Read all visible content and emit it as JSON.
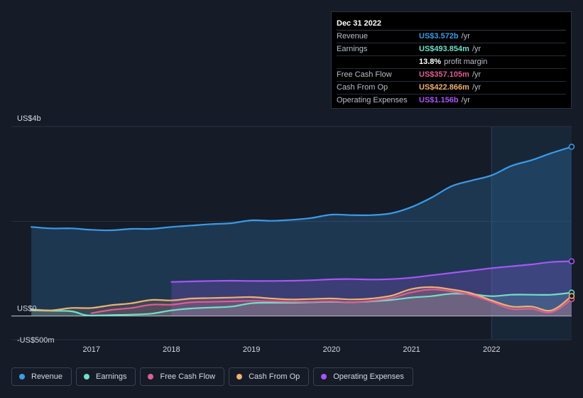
{
  "tooltip": {
    "date": "Dec 31 2022",
    "rows": [
      {
        "label": "Revenue",
        "value": "US$3.572b",
        "suffix": "/yr",
        "color": "#3b9be8"
      },
      {
        "label": "Earnings",
        "value": "US$493.854m",
        "suffix": "/yr",
        "color": "#6fe0c9"
      },
      {
        "label": "",
        "value": "13.8%",
        "suffix": "profit margin",
        "color": "#ffffff"
      },
      {
        "label": "Free Cash Flow",
        "value": "US$357.105m",
        "suffix": "/yr",
        "color": "#e05d93"
      },
      {
        "label": "Cash From Op",
        "value": "US$422.866m",
        "suffix": "/yr",
        "color": "#f0b070"
      },
      {
        "label": "Operating Expenses",
        "value": "US$1.156b",
        "suffix": "/yr",
        "color": "#a855f7"
      }
    ]
  },
  "legend": [
    {
      "label": "Revenue",
      "color": "#3b9be8"
    },
    {
      "label": "Earnings",
      "color": "#6fe0c9"
    },
    {
      "label": "Free Cash Flow",
      "color": "#e05d93"
    },
    {
      "label": "Cash From Op",
      "color": "#f0b070"
    },
    {
      "label": "Operating Expenses",
      "color": "#a855f7"
    }
  ],
  "chart_data": {
    "type": "area",
    "y_tick_labels": [
      "US$4b",
      "US$0",
      "-US$500m"
    ],
    "x_tick_labels": [
      "2017",
      "2018",
      "2019",
      "2020",
      "2021",
      "2022"
    ],
    "x_ticks": [
      2017,
      2018,
      2019,
      2020,
      2021,
      2022
    ],
    "ylim": [
      -500,
      4000
    ],
    "xlim": [
      2016.0,
      2023.0
    ],
    "highlight_start": 2022.0,
    "series": [
      {
        "name": "Revenue",
        "color": "#3b9be8",
        "points": [
          [
            2016.25,
            1880
          ],
          [
            2016.5,
            1850
          ],
          [
            2016.75,
            1850
          ],
          [
            2017.0,
            1820
          ],
          [
            2017.25,
            1810
          ],
          [
            2017.5,
            1840
          ],
          [
            2017.75,
            1840
          ],
          [
            2018.0,
            1880
          ],
          [
            2018.25,
            1910
          ],
          [
            2018.5,
            1940
          ],
          [
            2018.75,
            1960
          ],
          [
            2019.0,
            2020
          ],
          [
            2019.25,
            2010
          ],
          [
            2019.5,
            2030
          ],
          [
            2019.75,
            2070
          ],
          [
            2020.0,
            2140
          ],
          [
            2020.25,
            2130
          ],
          [
            2020.5,
            2130
          ],
          [
            2020.75,
            2170
          ],
          [
            2021.0,
            2300
          ],
          [
            2021.25,
            2500
          ],
          [
            2021.5,
            2740
          ],
          [
            2021.75,
            2860
          ],
          [
            2022.0,
            2970
          ],
          [
            2022.25,
            3170
          ],
          [
            2022.5,
            3290
          ],
          [
            2022.75,
            3440
          ],
          [
            2023.0,
            3572
          ]
        ]
      },
      {
        "name": "Operating Expenses",
        "color": "#a855f7",
        "points": [
          [
            2018.0,
            720
          ],
          [
            2018.25,
            730
          ],
          [
            2018.5,
            740
          ],
          [
            2018.75,
            745
          ],
          [
            2019.0,
            740
          ],
          [
            2019.25,
            740
          ],
          [
            2019.5,
            745
          ],
          [
            2019.75,
            755
          ],
          [
            2020.0,
            775
          ],
          [
            2020.25,
            780
          ],
          [
            2020.5,
            770
          ],
          [
            2020.75,
            780
          ],
          [
            2021.0,
            810
          ],
          [
            2021.25,
            860
          ],
          [
            2021.5,
            910
          ],
          [
            2021.75,
            960
          ],
          [
            2022.0,
            1010
          ],
          [
            2022.25,
            1050
          ],
          [
            2022.5,
            1090
          ],
          [
            2022.75,
            1140
          ],
          [
            2023.0,
            1156
          ]
        ]
      },
      {
        "name": "Earnings",
        "color": "#6fe0c9",
        "points": [
          [
            2016.25,
            120
          ],
          [
            2016.5,
            110
          ],
          [
            2016.75,
            100
          ],
          [
            2016.9,
            30
          ],
          [
            2017.0,
            10
          ],
          [
            2017.25,
            20
          ],
          [
            2017.5,
            30
          ],
          [
            2017.75,
            50
          ],
          [
            2018.0,
            120
          ],
          [
            2018.25,
            160
          ],
          [
            2018.5,
            180
          ],
          [
            2018.75,
            200
          ],
          [
            2019.0,
            270
          ],
          [
            2019.25,
            280
          ],
          [
            2019.5,
            280
          ],
          [
            2019.75,
            290
          ],
          [
            2020.0,
            300
          ],
          [
            2020.25,
            290
          ],
          [
            2020.5,
            310
          ],
          [
            2020.75,
            340
          ],
          [
            2021.0,
            390
          ],
          [
            2021.25,
            420
          ],
          [
            2021.5,
            470
          ],
          [
            2021.75,
            460
          ],
          [
            2022.0,
            420
          ],
          [
            2022.25,
            450
          ],
          [
            2022.5,
            450
          ],
          [
            2022.75,
            450
          ],
          [
            2023.0,
            494
          ]
        ]
      },
      {
        "name": "Free Cash Flow",
        "color": "#e05d93",
        "points": [
          [
            2017.0,
            60
          ],
          [
            2017.25,
            130
          ],
          [
            2017.5,
            170
          ],
          [
            2017.75,
            240
          ],
          [
            2018.0,
            240
          ],
          [
            2018.25,
            290
          ],
          [
            2018.5,
            300
          ],
          [
            2018.75,
            310
          ],
          [
            2019.0,
            320
          ],
          [
            2019.25,
            310
          ],
          [
            2019.5,
            300
          ],
          [
            2019.75,
            300
          ],
          [
            2020.0,
            310
          ],
          [
            2020.25,
            290
          ],
          [
            2020.5,
            320
          ],
          [
            2020.75,
            380
          ],
          [
            2021.0,
            500
          ],
          [
            2021.25,
            560
          ],
          [
            2021.5,
            520
          ],
          [
            2021.75,
            440
          ],
          [
            2022.0,
            300
          ],
          [
            2022.25,
            150
          ],
          [
            2022.5,
            150
          ],
          [
            2022.75,
            80
          ],
          [
            2023.0,
            357
          ]
        ]
      },
      {
        "name": "Cash From Op",
        "color": "#f0b070",
        "points": [
          [
            2016.25,
            140
          ],
          [
            2016.5,
            120
          ],
          [
            2016.75,
            170
          ],
          [
            2017.0,
            170
          ],
          [
            2017.25,
            230
          ],
          [
            2017.5,
            270
          ],
          [
            2017.75,
            340
          ],
          [
            2018.0,
            330
          ],
          [
            2018.25,
            370
          ],
          [
            2018.5,
            380
          ],
          [
            2018.75,
            390
          ],
          [
            2019.0,
            400
          ],
          [
            2019.25,
            370
          ],
          [
            2019.5,
            350
          ],
          [
            2019.75,
            360
          ],
          [
            2020.0,
            370
          ],
          [
            2020.25,
            350
          ],
          [
            2020.5,
            370
          ],
          [
            2020.75,
            430
          ],
          [
            2021.0,
            570
          ],
          [
            2021.25,
            610
          ],
          [
            2021.5,
            560
          ],
          [
            2021.75,
            480
          ],
          [
            2022.0,
            330
          ],
          [
            2022.25,
            200
          ],
          [
            2022.5,
            200
          ],
          [
            2022.75,
            120
          ],
          [
            2023.0,
            423
          ]
        ]
      }
    ]
  }
}
